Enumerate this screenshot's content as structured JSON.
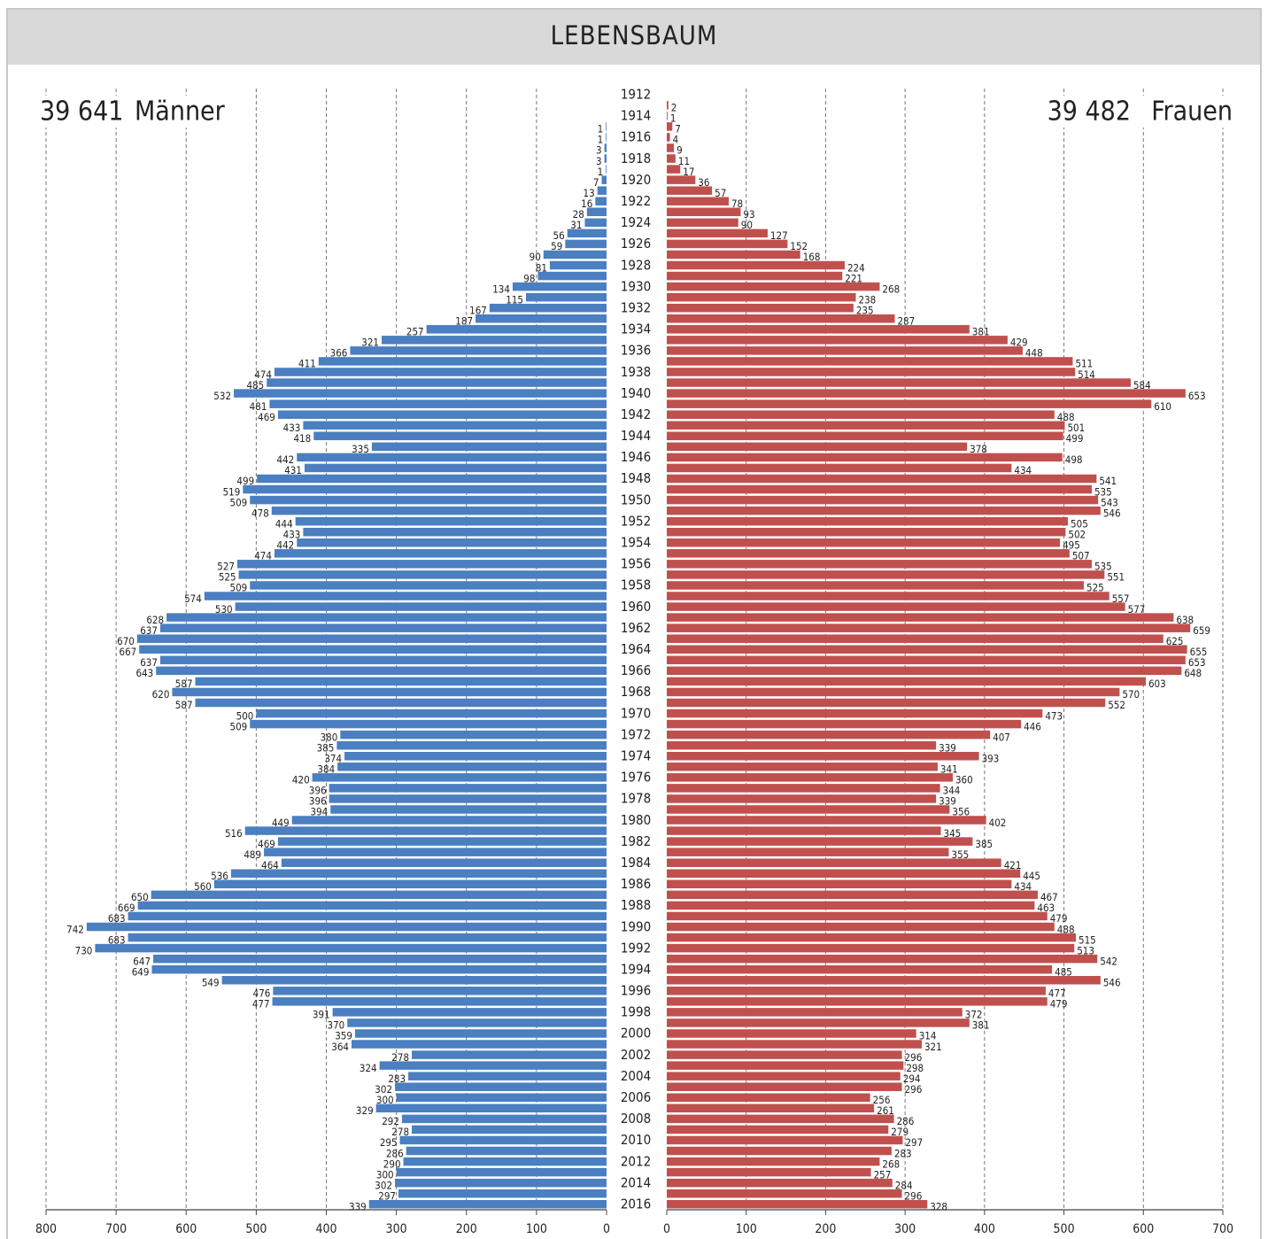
{
  "chart_data": {
    "type": "pyramid",
    "title": "LEBENSBAUM",
    "categories": [
      1912,
      null,
      1914,
      null,
      1916,
      null,
      1918,
      null,
      1920,
      null,
      1922,
      null,
      1924,
      null,
      1926,
      null,
      1928,
      null,
      1930,
      null,
      1932,
      null,
      1934,
      null,
      1936,
      null,
      1938,
      null,
      1940,
      null,
      1942,
      null,
      1944,
      null,
      1946,
      null,
      1948,
      null,
      1950,
      null,
      1952,
      null,
      1954,
      null,
      1956,
      null,
      1958,
      null,
      1960,
      null,
      1962,
      null,
      1964,
      null,
      1966,
      null,
      1968,
      null,
      1970,
      null,
      1972,
      null,
      1974,
      null,
      1976,
      null,
      1978,
      null,
      1980,
      null,
      1982,
      null,
      1984,
      null,
      1986,
      null,
      1988,
      null,
      1990,
      null,
      1992,
      null,
      1994,
      null,
      1996,
      null,
      1998,
      null,
      2000,
      null,
      2002,
      null,
      2004,
      null,
      2006,
      null,
      2008,
      null,
      2010,
      null,
      2012,
      null,
      2014,
      null,
      2016
    ],
    "grid": true,
    "series": [
      {
        "name": "Männer",
        "total": {
          "value": 39641,
          "label": "39 641"
        },
        "color": "#4a7fc1",
        "side": "left",
        "xlim": [
          0,
          800
        ],
        "xticks": [
          0,
          100,
          200,
          300,
          400,
          500,
          600,
          700,
          800
        ],
        "values": [
          null,
          null,
          null,
          1,
          1,
          3,
          3,
          1,
          7,
          13,
          16,
          28,
          31,
          56,
          59,
          90,
          81,
          98,
          134,
          115,
          167,
          187,
          257,
          321,
          366,
          411,
          474,
          485,
          532,
          481,
          469,
          433,
          418,
          335,
          442,
          431,
          499,
          519,
          509,
          478,
          444,
          433,
          442,
          474,
          527,
          525,
          509,
          574,
          530,
          628,
          637,
          670,
          667,
          637,
          643,
          587,
          620,
          587,
          500,
          509,
          380,
          385,
          374,
          384,
          420,
          396,
          396,
          394,
          449,
          516,
          469,
          489,
          464,
          536,
          560,
          650,
          669,
          683,
          742,
          683,
          730,
          647,
          649,
          549,
          476,
          477,
          391,
          370,
          359,
          364,
          278,
          324,
          283,
          302,
          300,
          329,
          292,
          278,
          295,
          286,
          290,
          300,
          302,
          297,
          339
        ]
      },
      {
        "name": "Frauen",
        "total": {
          "value": 39482,
          "label": "39 482"
        },
        "color": "#c0504d",
        "side": "right",
        "xlim": [
          0,
          700
        ],
        "xticks": [
          0,
          100,
          200,
          300,
          400,
          500,
          600,
          700
        ],
        "values": [
          null,
          2,
          1,
          7,
          4,
          9,
          11,
          17,
          36,
          57,
          78,
          93,
          90,
          127,
          152,
          168,
          224,
          221,
          268,
          238,
          235,
          287,
          381,
          429,
          448,
          511,
          514,
          584,
          653,
          610,
          488,
          501,
          499,
          378,
          498,
          434,
          541,
          535,
          543,
          546,
          505,
          502,
          495,
          507,
          535,
          551,
          525,
          557,
          577,
          638,
          659,
          625,
          655,
          653,
          648,
          603,
          570,
          552,
          473,
          446,
          407,
          339,
          393,
          341,
          360,
          344,
          339,
          356,
          402,
          345,
          385,
          355,
          421,
          445,
          434,
          467,
          463,
          479,
          488,
          515,
          513,
          542,
          485,
          546,
          477,
          479,
          372,
          381,
          314,
          321,
          296,
          298,
          294,
          296,
          256,
          261,
          286,
          279,
          297,
          283,
          268,
          257,
          284,
          296,
          328
        ]
      }
    ]
  }
}
